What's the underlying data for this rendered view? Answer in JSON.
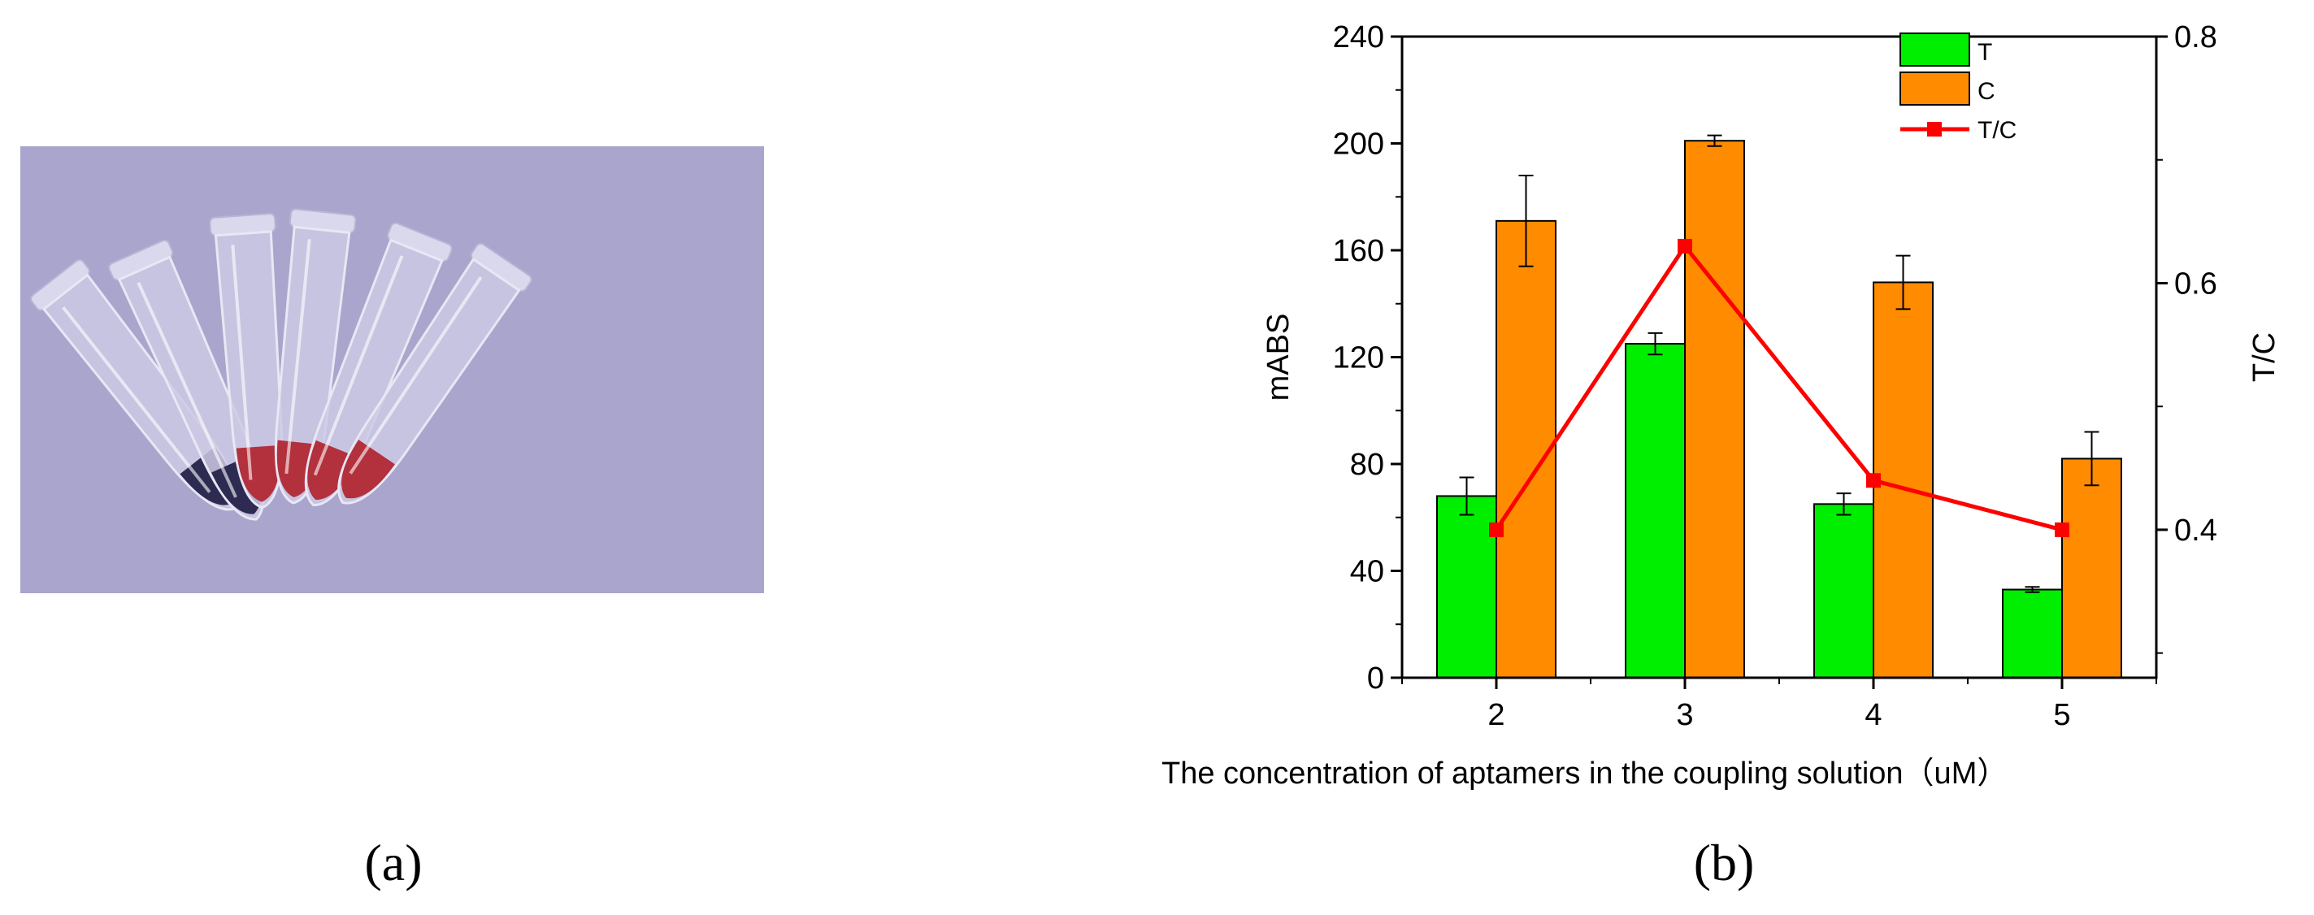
{
  "panels": {
    "a_label": "(a)",
    "b_label": "(b)"
  },
  "photo": {
    "background_color": "#a9a5cc",
    "tubes": [
      {
        "liquid": "dark purple",
        "color": "#2e2b52"
      },
      {
        "liquid": "dark purple",
        "color": "#2e2b52"
      },
      {
        "liquid": "red",
        "color": "#b3303d"
      },
      {
        "liquid": "red",
        "color": "#b3303d"
      },
      {
        "liquid": "red",
        "color": "#b3303d"
      },
      {
        "liquid": "red",
        "color": "#b3303d"
      }
    ]
  },
  "chart_data": {
    "type": "bar",
    "categories": [
      "2",
      "3",
      "4",
      "5"
    ],
    "xlabel": "The concentration of aptamers in the coupling solution（uM）",
    "ylabel": "mABS",
    "y2label": "T/C",
    "ylim": [
      0,
      240
    ],
    "yticks": [
      "0",
      "40",
      "80",
      "120",
      "160",
      "200",
      "240"
    ],
    "y2lim": [
      0.28,
      0.8
    ],
    "y2ticks": [
      "0.4",
      "0.6",
      "0.8"
    ],
    "legend_position": "top-right",
    "series": [
      {
        "name": "T",
        "kind": "bar",
        "color": "#00ee00",
        "values": [
          68,
          125,
          65,
          33
        ],
        "errors": [
          7,
          4,
          4,
          1
        ]
      },
      {
        "name": "C",
        "kind": "bar",
        "color": "#ff8c00",
        "values": [
          171,
          201,
          148,
          82
        ],
        "errors": [
          17,
          2,
          10,
          10
        ]
      },
      {
        "name": "T/C",
        "kind": "line",
        "axis": "right",
        "color": "#ff0000",
        "values": [
          0.4,
          0.63,
          0.44,
          0.4
        ]
      }
    ]
  }
}
